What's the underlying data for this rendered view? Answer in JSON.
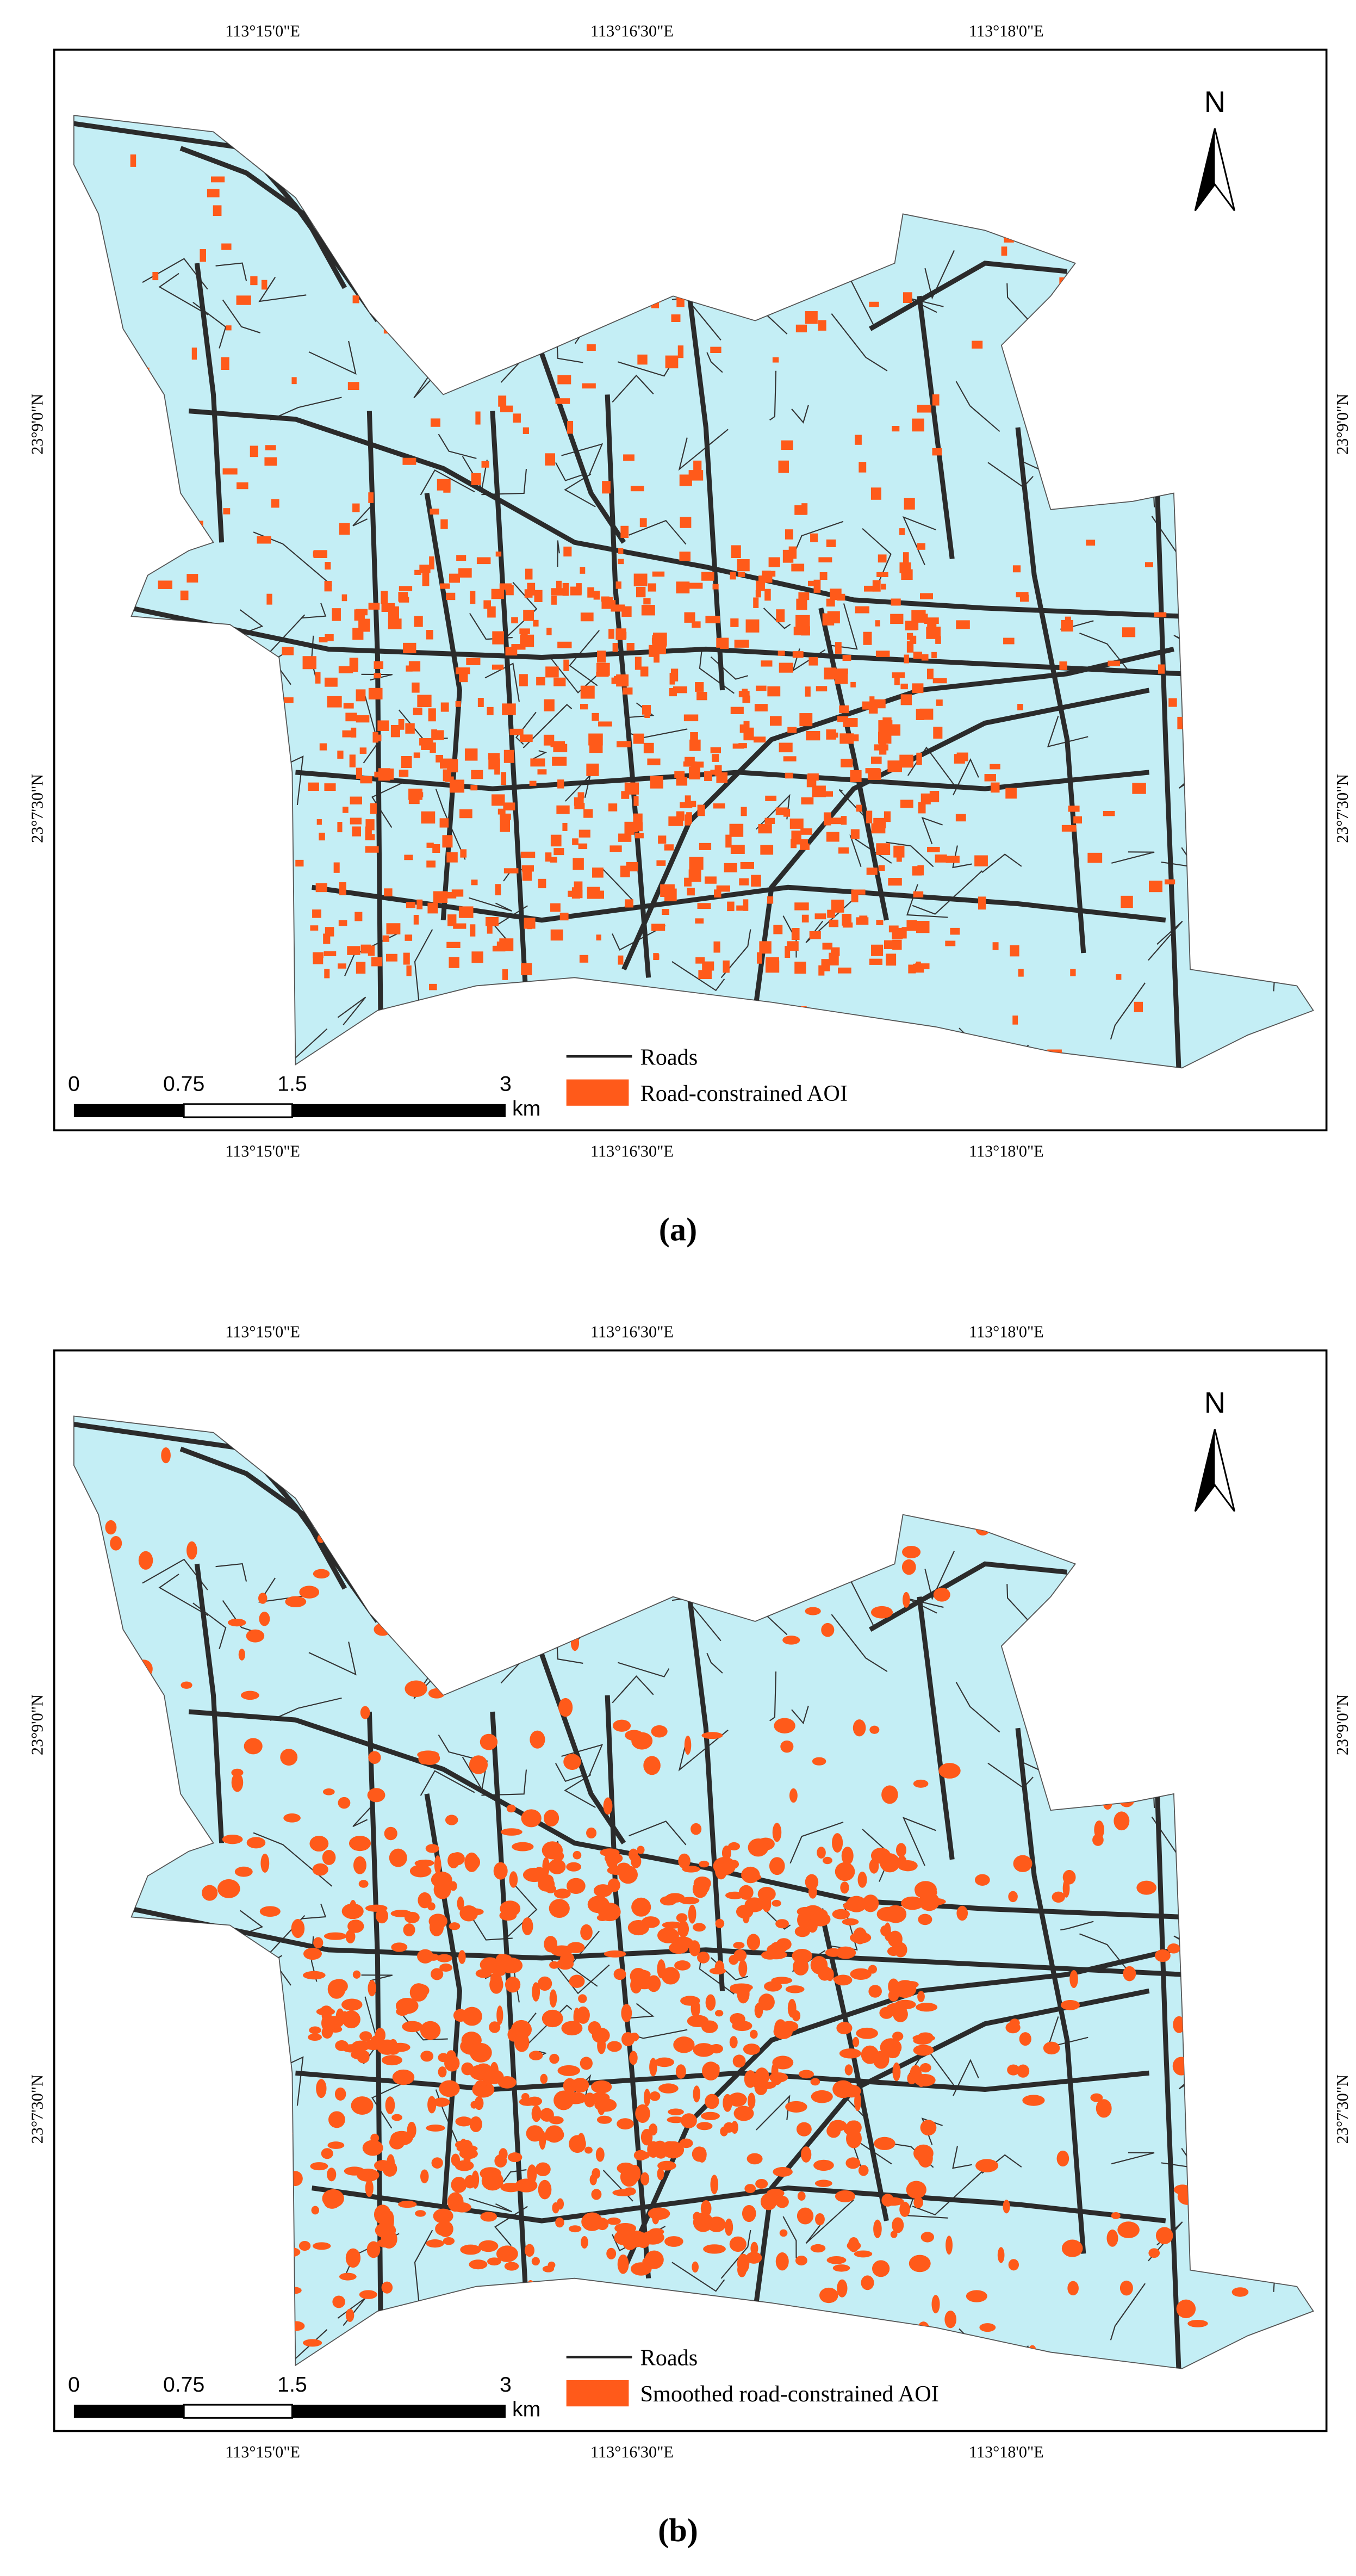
{
  "panels": [
    {
      "top_labels": [
        "113°15'0\"E",
        "113°16'30\"E",
        "113°18'0\"E"
      ],
      "bottom_labels": [
        "113°15'0\"E",
        "113°16'30\"E",
        "113°18'0\"E"
      ],
      "left_labels": [
        "23°9'0\"N",
        "23°7'30\"N"
      ],
      "right_labels": [
        "23°9'0\"N",
        "23°7'30\"N"
      ],
      "north": "N",
      "scale_labels": [
        "0",
        "0.75",
        "1.5",
        "3"
      ],
      "scale_unit": "km",
      "legend": [
        "Roads",
        "Road-constrained AOI"
      ],
      "caption": "(a)"
    },
    {
      "top_labels": [
        "113°15'0\"E",
        "113°16'30\"E",
        "113°18'0\"E"
      ],
      "bottom_labels": [
        "113°15'0\"E",
        "113°16'30\"E",
        "113°18'0\"E"
      ],
      "left_labels": [
        "23°9'0\"N",
        "23°7'30\"N"
      ],
      "right_labels": [
        "23°9'0\"N",
        "23°7'30\"N"
      ],
      "north": "N",
      "scale_labels": [
        "0",
        "0.75",
        "1.5",
        "3"
      ],
      "scale_unit": "km",
      "legend": [
        "Roads",
        "Smoothed road-constrained AOI"
      ],
      "caption": "(b)"
    }
  ]
}
